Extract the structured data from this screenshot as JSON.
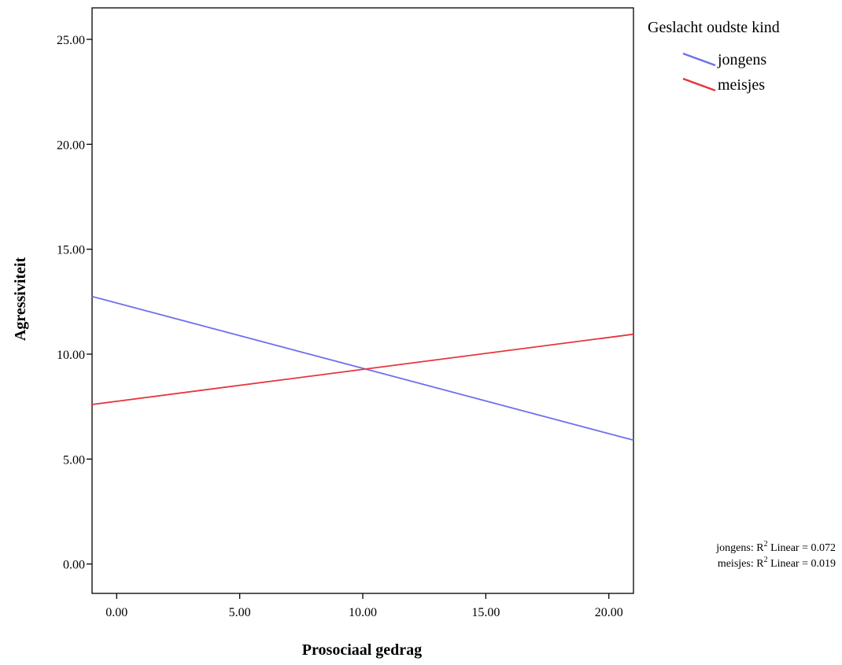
{
  "chart_data": {
    "type": "line",
    "xlabel": "Prosociaal gedrag",
    "ylabel": "Agressiviteit",
    "xlim": [
      -1.0,
      21.0
    ],
    "ylim": [
      -1.4,
      26.5
    ],
    "xticks": [
      0,
      5,
      10,
      15,
      20
    ],
    "yticks": [
      0,
      5,
      10,
      15,
      20,
      25
    ],
    "tick_format_decimals": 2,
    "grid": false,
    "legend": {
      "title": "Geslacht oudste kind",
      "placement": "top-right outside"
    },
    "series": [
      {
        "name": "jongens",
        "color": "#6f6ff0",
        "x": [
          -1.0,
          21.0
        ],
        "y": [
          12.75,
          5.9
        ]
      },
      {
        "name": "meisjes",
        "color": "#e8343c",
        "x": [
          -1.0,
          21.0
        ],
        "y": [
          7.6,
          10.95
        ]
      }
    ],
    "fit_notes": [
      {
        "prefix": "jongens: R",
        "sup": "2",
        "suffix": " Linear = 0.072"
      },
      {
        "prefix": "meisjes: R",
        "sup": "2",
        "suffix": " Linear = 0.019"
      }
    ]
  }
}
